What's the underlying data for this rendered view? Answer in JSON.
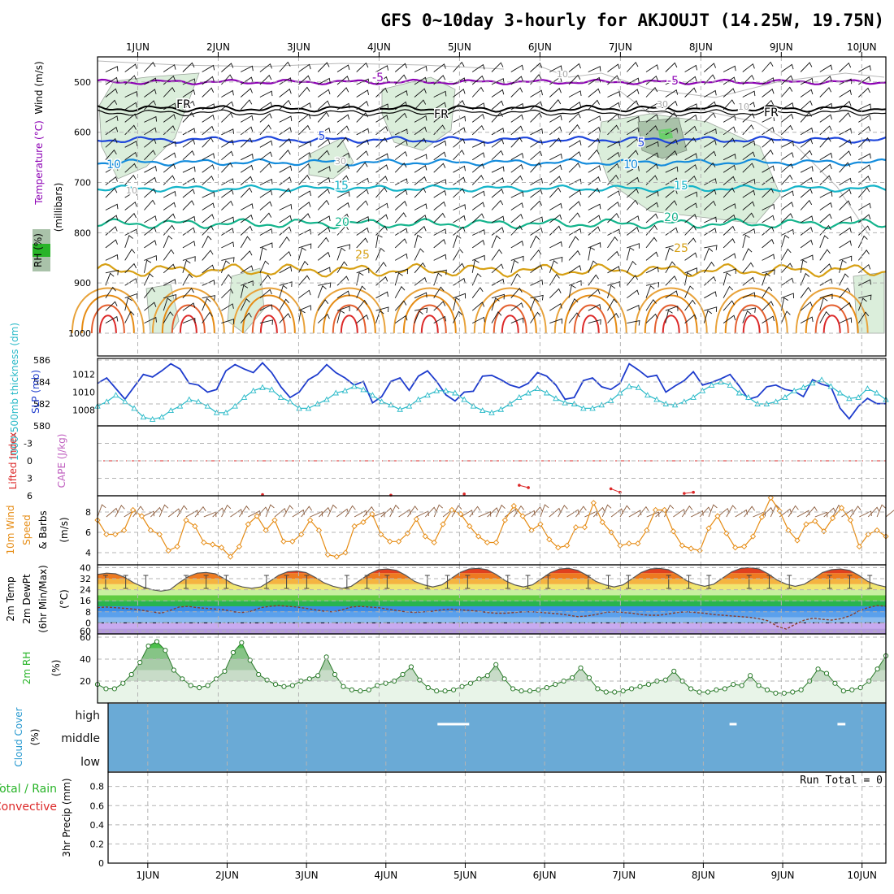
{
  "title": "GFS 0~10day 3-hourly for AKJOUJT (14.25W, 19.75N)",
  "days": [
    "1JUN",
    "2JUN",
    "3JUN",
    "4JUN",
    "5JUN",
    "6JUN",
    "7JUN",
    "8JUN",
    "9JUN",
    "10JUN"
  ],
  "colors": {
    "purple": "#8c00b4",
    "black": "#000000",
    "blue": "#1e46dc",
    "lightblue": "#148cdc",
    "cyan": "#14b4c8",
    "teal": "#14b48c",
    "gold": "#d7a014",
    "orange": "#e68c14",
    "red": "#dc2828",
    "green": "#28b428",
    "cloud": "#6aaad6",
    "slp": "#1e3ccd",
    "thick": "#2abac8"
  },
  "chart_data": [
    {
      "type": "line",
      "name": "upper-air",
      "ylabel": "(millibars)",
      "y_ticks": [
        500,
        600,
        700,
        800,
        900,
        1000
      ],
      "ylim": [
        450,
        1000
      ],
      "legend": [
        "Wind (m/s)",
        "Temperature (°C)",
        "RH (%)"
      ],
      "isotherms": [
        {
          "label": "-5",
          "color": "purple",
          "base": 500,
          "amp": 3
        },
        {
          "label": "FR",
          "color": "black",
          "base": 553,
          "amp": 4
        },
        {
          "label": "5",
          "color": "blue",
          "base": 615,
          "amp": 4
        },
        {
          "label": "10",
          "color": "lightblue",
          "base": 660,
          "amp": 4
        },
        {
          "label": "15",
          "color": "cyan",
          "base": 712,
          "amp": 4
        },
        {
          "label": "20",
          "color": "teal",
          "base": 782,
          "amp": 6
        },
        {
          "label": "25",
          "color": "gold",
          "base": 875,
          "amp": 8
        }
      ],
      "contour_labels": [
        "-5",
        "-5",
        "FR",
        "FR",
        "FR",
        "5",
        "5",
        "10",
        "10",
        "15",
        "15",
        "20",
        "20",
        "25",
        "25",
        "10",
        "30",
        "30",
        "10",
        "10"
      ]
    },
    {
      "type": "line",
      "name": "slp-thickness",
      "ylabel_left": "1000-500mb thickness (dm)",
      "ylabel_right": "SLP (mb)",
      "y_ticks_left": [
        580,
        582,
        584,
        586
      ],
      "ylim_left": [
        580,
        586
      ],
      "y_ticks_right": [
        1008,
        1010,
        1012
      ],
      "ylim_right": [
        1006.2,
        1013.8
      ],
      "series": [
        {
          "name": "SLP",
          "color": "slp",
          "values": [
            1011.0,
            1011.6,
            1010.4,
            1009.2,
            1010.6,
            1012.0,
            1011.7,
            1012.4,
            1013.2,
            1012.6,
            1011.0,
            1010.8,
            1010.0,
            1010.3,
            1012.4,
            1013.1,
            1012.6,
            1012.2,
            1013.3,
            1012.2,
            1010.6,
            1009.4,
            1010.0,
            1011.4,
            1012.0,
            1013.1,
            1012.2,
            1011.6,
            1010.8,
            1011.2,
            1008.8,
            1009.5,
            1011.2,
            1011.6,
            1010.2,
            1011.8,
            1012.4,
            1011.2,
            1009.7,
            1009.0,
            1010.0,
            1010.1,
            1011.8,
            1011.9,
            1011.4,
            1010.8,
            1010.5,
            1011.0,
            1012.2,
            1011.8,
            1010.8,
            1009.2,
            1009.4,
            1011.3,
            1011.6,
            1010.6,
            1010.3,
            1011.0,
            1013.2,
            1012.5,
            1011.7,
            1011.9,
            1010.0,
            1010.7,
            1011.3,
            1012.3,
            1010.8,
            1011.1,
            1011.5,
            1012.0,
            1010.7,
            1009.2,
            1009.5,
            1010.6,
            1010.8,
            1010.3,
            1010.1,
            1009.5,
            1011.4,
            1010.9,
            1010.6,
            1008.2,
            1007.0,
            1008.4,
            1009.3,
            1008.7,
            1008.7
          ]
        },
        {
          "name": "Thickness",
          "color": "thick",
          "values": [
            581.8,
            582.2,
            582.8,
            582.2,
            581.6,
            580.8,
            580.6,
            580.8,
            581.4,
            581.8,
            582.4,
            582.2,
            581.8,
            581.2,
            581.2,
            581.8,
            582.6,
            583.2,
            583.5,
            583.3,
            582.6,
            582.2,
            581.6,
            581.6,
            582.0,
            582.4,
            583.0,
            583.2,
            583.6,
            583.3,
            582.8,
            582.2,
            581.9,
            581.5,
            581.8,
            582.4,
            582.8,
            583.2,
            583.2,
            583.0,
            582.4,
            581.8,
            581.4,
            581.2,
            581.5,
            582.0,
            582.6,
            583.0,
            583.4,
            583.0,
            582.5,
            582.1,
            582.0,
            581.6,
            581.6,
            581.9,
            582.3,
            583.0,
            583.6,
            583.5,
            582.8,
            582.4,
            582.0,
            581.9,
            582.2,
            582.6,
            583.2,
            583.7,
            584.0,
            583.7,
            583.0,
            582.6,
            582.0,
            582.0,
            582.2,
            582.6,
            583.2,
            583.5,
            583.9,
            584.2,
            583.6,
            583.0,
            582.5,
            582.6,
            583.4,
            583.0,
            582.4
          ]
        }
      ]
    },
    {
      "type": "line",
      "name": "stability",
      "ylabel_left": "Lifted Index",
      "ylabel_right": "CAPE (J/kg)",
      "y_ticks": [
        -3,
        0,
        3,
        6
      ],
      "ylim": [
        -6,
        6
      ],
      "series": [
        {
          "name": "Lifted Index",
          "color": "red",
          "values": [
            7,
            7,
            7,
            7,
            7,
            7,
            7,
            7,
            7,
            7,
            7,
            7,
            7,
            7,
            7,
            7,
            7,
            7,
            5.8,
            7,
            7,
            7,
            7,
            7,
            7,
            7,
            7,
            7,
            7,
            7,
            7,
            7,
            5.9,
            7,
            7,
            7,
            7,
            7,
            7,
            7,
            5.7,
            7,
            7,
            7,
            7,
            7,
            4.2,
            4.6,
            7,
            7,
            7,
            7,
            7,
            7,
            7,
            7,
            4.8,
            5.4,
            7,
            7,
            7,
            7,
            7,
            7,
            5.6,
            5.4,
            7,
            7,
            7,
            7,
            7,
            7,
            7,
            7,
            7,
            7,
            7,
            7,
            7,
            7,
            7,
            7,
            7,
            7,
            7,
            7,
            7
          ]
        }
      ]
    },
    {
      "type": "line",
      "name": "10m-wind",
      "ylabel": "10m Wind Speed & Barbs (m/s)",
      "y_ticks": [
        4,
        6,
        8
      ],
      "ylim": [
        2.8,
        9.6
      ],
      "series": [
        {
          "name": "10m Wind",
          "color": "orange",
          "values": [
            7.2,
            5.8,
            5.8,
            6.2,
            8.2,
            7.6,
            6.2,
            5.8,
            4.2,
            4.6,
            7.2,
            6.6,
            5.0,
            4.8,
            4.5,
            3.6,
            4.6,
            6.8,
            7.6,
            6.2,
            7.2,
            5.1,
            5.1,
            5.8,
            7.2,
            6.2,
            3.8,
            3.6,
            4.0,
            6.6,
            7.0,
            7.8,
            5.8,
            5.1,
            5.1,
            5.9,
            7.3,
            5.6,
            5.0,
            6.8,
            8.2,
            7.8,
            6.6,
            5.6,
            5.0,
            5.0,
            7.2,
            8.6,
            7.6,
            6.2,
            6.8,
            5.3,
            4.5,
            4.7,
            6.5,
            6.5,
            8.9,
            7.0,
            6.0,
            4.7,
            4.9,
            4.9,
            6.2,
            8.2,
            8.2,
            6.1,
            4.7,
            4.4,
            4.2,
            6.4,
            7.6,
            5.9,
            4.5,
            4.6,
            5.6,
            7.5,
            9.4,
            8.1,
            6.2,
            5.2,
            6.8,
            7.1,
            6.1,
            7.4,
            8.4,
            7.2,
            4.6,
            5.8,
            6.2,
            5.6
          ]
        }
      ]
    },
    {
      "type": "area",
      "name": "2m-temp-dewpt",
      "ylabel": "2m Temp 2m DewPt (6hr Min/Max) (°C)",
      "y_ticks": [
        60,
        0,
        8,
        16,
        24,
        32,
        40
      ],
      "ylim": [
        -8,
        42
      ],
      "series": [
        {
          "name": "2m Temp",
          "color": "black",
          "values": [
            35.0,
            36.0,
            35.5,
            33.0,
            29.0,
            26.0,
            24.0,
            23.0,
            24.0,
            29.0,
            33.5,
            36.0,
            36.5,
            35.5,
            32.0,
            28.0,
            26.0,
            25.0,
            26.0,
            30.0,
            34.5,
            37.0,
            37.5,
            36.5,
            33.0,
            29.0,
            26.5,
            25.0,
            26.5,
            31.0,
            35.5,
            38.5,
            39.0,
            38.0,
            34.5,
            30.0,
            27.5,
            26.0,
            27.5,
            32.0,
            36.5,
            39.0,
            39.5,
            38.5,
            35.0,
            30.5,
            27.5,
            26.0,
            27.5,
            32.0,
            36.5,
            39.0,
            39.5,
            38.0,
            34.5,
            30.0,
            27.5,
            26.0,
            27.5,
            32.0,
            36.5,
            39.0,
            39.5,
            38.5,
            35.0,
            30.5,
            28.0,
            26.5,
            28.0,
            32.5,
            37.0,
            39.5,
            40.0,
            39.0,
            35.5,
            31.0,
            28.0,
            26.5,
            28.0,
            32.0,
            36.5,
            38.5,
            39.0,
            38.0,
            34.5,
            30.0,
            27.5,
            26.0
          ]
        },
        {
          "name": "2m DewPt",
          "color": "brown",
          "values": [
            11.0,
            11.5,
            11.0,
            10.5,
            10.0,
            9.0,
            8.0,
            7.0,
            9.0,
            11.5,
            12.0,
            11.0,
            10.5,
            10.0,
            9.5,
            8.0,
            7.5,
            8.5,
            11.0,
            12.0,
            12.5,
            12.0,
            11.5,
            10.5,
            9.5,
            8.5,
            8.0,
            9.5,
            11.5,
            12.0,
            11.5,
            11.0,
            10.0,
            9.0,
            8.0,
            7.5,
            8.0,
            8.5,
            9.5,
            10.0,
            9.5,
            9.0,
            8.5,
            7.5,
            7.0,
            7.0,
            7.5,
            8.0,
            8.0,
            7.5,
            7.0,
            6.5,
            5.5,
            4.5,
            5.0,
            6.0,
            7.5,
            8.0,
            7.5,
            7.0,
            6.0,
            5.5,
            5.5,
            6.5,
            7.5,
            8.0,
            7.5,
            7.0,
            6.0,
            5.5,
            5.0,
            4.5,
            4.0,
            3.0,
            1.5,
            -2.5,
            -4.5,
            -1.0,
            2.0,
            3.5,
            2.5,
            2.0,
            3.0,
            5.0,
            8.5,
            11.0,
            12.5,
            12.0
          ]
        }
      ]
    },
    {
      "type": "area",
      "name": "2m-rh",
      "ylabel": "2m RH (%)",
      "y_ticks": [
        20,
        40,
        60
      ],
      "ylim": [
        0,
        63
      ],
      "series": [
        {
          "name": "2m RH",
          "color": "green",
          "values": [
            17,
            13,
            13,
            18,
            26,
            37,
            52,
            56,
            48,
            30,
            22,
            16,
            14,
            16,
            22,
            29,
            46,
            55,
            39,
            26,
            21,
            17,
            15,
            16,
            20,
            22,
            25,
            42,
            26,
            15,
            12,
            11,
            12,
            16,
            18,
            20,
            26,
            33,
            21,
            14,
            11,
            11,
            12,
            15,
            18,
            22,
            25,
            35,
            22,
            13,
            11,
            11,
            12,
            14,
            17,
            20,
            23,
            32,
            23,
            13,
            10,
            10,
            11,
            13,
            15,
            17,
            20,
            21,
            29,
            20,
            13,
            10,
            10,
            12,
            13,
            17,
            16,
            25,
            16,
            12,
            9,
            9,
            10,
            12,
            20,
            31,
            27,
            18,
            11,
            12,
            14,
            20,
            31,
            43
          ]
        }
      ]
    },
    {
      "type": "heatmap",
      "name": "cloud-cover",
      "ylabel": "Cloud Cover (%)",
      "rows": [
        "high",
        "middle",
        "low"
      ],
      "color": "cloud",
      "gaps": [
        {
          "row": "high",
          "from": 4.65,
          "to": 5.05
        },
        {
          "row": "high",
          "from": 8.33,
          "to": 8.42
        },
        {
          "row": "high",
          "from": 9.69,
          "to": 9.79
        }
      ]
    },
    {
      "type": "bar",
      "name": "precip",
      "ylabel_left": "Total / Rain Convective",
      "ylabel_right": "3hr Precip (mm)",
      "y_ticks": [
        0,
        0.2,
        0.4,
        0.6,
        0.8
      ],
      "ylim": [
        0,
        0.95
      ],
      "annotation": "Run Total = 0",
      "values": []
    }
  ],
  "labels": {
    "panel1_right": "Wind (m/s)",
    "panel1_temp": "Temperature (°C)",
    "panel1_rh": "RH (%)",
    "panel1_mb": "(millibars)",
    "slp": "SLP (mb)",
    "thick": "1000-500mb thickness (dm)",
    "li": "Lifted Index",
    "cape": "CAPE (J/kg)",
    "wind": "10m Wind",
    "wind2": "Speed",
    "wind3": "& Barbs",
    "wind_units": "(m/s)",
    "temp1": "2m Temp",
    "temp2": "2m DewPt",
    "temp3": "(6hr Min/Max)",
    "temp_units": "(°C)",
    "rh": "2m RH",
    "rh_units": "(%)",
    "cloud": "Cloud Cover",
    "cloud_units": "(%)",
    "precip1": "Total / Rain",
    "precip2": "Convective",
    "precip_r": "3hr Precip (mm)"
  }
}
